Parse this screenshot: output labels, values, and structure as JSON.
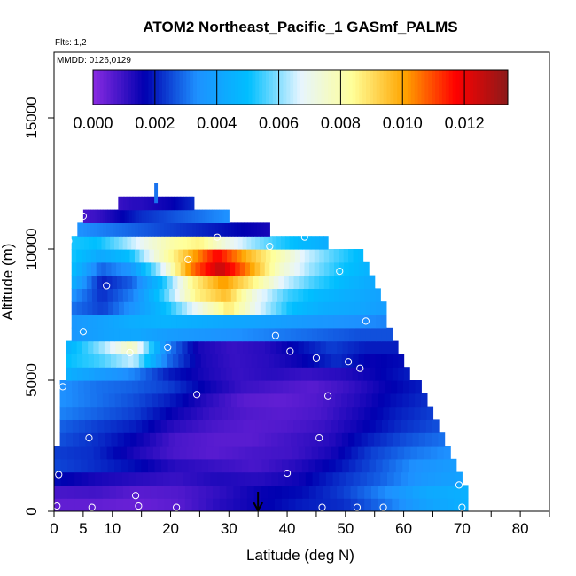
{
  "chart_data": {
    "type": "heatmap",
    "title": "ATOM2 Northeast_Pacific_1 GASmf_PALMS",
    "flights_label": "Flts: 1,2",
    "date_label": "MMDD: 0126,0129",
    "xlabel": "Latitude (deg N)",
    "ylabel": "Altitude (m)",
    "xlim": [
      0,
      85
    ],
    "ylim": [
      0,
      17500
    ],
    "x_ticks": [
      0,
      5,
      10,
      20,
      30,
      40,
      50,
      60,
      70,
      80
    ],
    "y_ticks": [
      0,
      5000,
      10000,
      15000
    ],
    "colorbar": {
      "min": 0.0,
      "max": 0.0134,
      "ticks": [
        "0.000",
        "0.002",
        "0.004",
        "0.006",
        "0.008",
        "0.010",
        "0.012"
      ],
      "tick_values": [
        0.0,
        0.002,
        0.004,
        0.006,
        0.008,
        0.01,
        0.012
      ],
      "colors": [
        "#8a2be2",
        "#0000b0",
        "#1e90ff",
        "#00bfff",
        "#e6f5ff",
        "#ffff99",
        "#ffa500",
        "#ff0000",
        "#8b1a1a"
      ]
    },
    "marker": {
      "latitude": 35,
      "label": "arrow"
    },
    "layers": [
      {
        "alt": 250,
        "lat": [
          0,
          71
        ],
        "values": [
          0.0005,
          0.0005,
          0.0004,
          0.0006,
          0.0012,
          0.0016,
          0.002,
          0.0022,
          0.003,
          0.004,
          0.0045
        ]
      },
      {
        "alt": 750,
        "lat": [
          0,
          71
        ],
        "values": [
          0.0008,
          0.0009,
          0.0006,
          0.0007,
          0.0011,
          0.0016,
          0.0018,
          0.0024,
          0.0033,
          0.0042,
          0.0045
        ]
      },
      {
        "alt": 1250,
        "lat": [
          0,
          70
        ],
        "values": [
          0.0018,
          0.0014,
          0.0012,
          0.001,
          0.0013,
          0.0012,
          0.0015,
          0.0022,
          0.0028,
          0.0036,
          0.004
        ]
      },
      {
        "alt": 1750,
        "lat": [
          0,
          69
        ],
        "values": [
          0.0025,
          0.0022,
          0.0018,
          0.0012,
          0.001,
          0.0008,
          0.0012,
          0.0018,
          0.0026,
          0.0034,
          0.0038
        ]
      },
      {
        "alt": 2250,
        "lat": [
          0,
          68
        ],
        "values": [
          0.0024,
          0.0022,
          0.0014,
          0.0008,
          0.0006,
          0.0008,
          0.0009,
          0.0014,
          0.0024,
          0.003,
          0.0034
        ]
      },
      {
        "alt": 2750,
        "lat": [
          1,
          67
        ],
        "values": [
          0.0026,
          0.0022,
          0.0016,
          0.0008,
          0.0006,
          0.0006,
          0.0009,
          0.0012,
          0.002,
          0.0026,
          0.003
        ]
      },
      {
        "alt": 3250,
        "lat": [
          1,
          66
        ],
        "values": [
          0.0028,
          0.0024,
          0.002,
          0.0012,
          0.0008,
          0.0006,
          0.0007,
          0.001,
          0.0016,
          0.0022,
          0.0026
        ]
      },
      {
        "alt": 3750,
        "lat": [
          1,
          65
        ],
        "values": [
          0.0032,
          0.0028,
          0.0024,
          0.0016,
          0.001,
          0.0007,
          0.0006,
          0.0008,
          0.0014,
          0.002,
          0.0024
        ]
      },
      {
        "alt": 4250,
        "lat": [
          1,
          64
        ],
        "values": [
          0.0034,
          0.003,
          0.0026,
          0.002,
          0.0012,
          0.0006,
          0.0005,
          0.0007,
          0.0012,
          0.0018,
          0.0022
        ]
      },
      {
        "alt": 4750,
        "lat": [
          1,
          63
        ],
        "values": [
          0.0034,
          0.003,
          0.0028,
          0.0024,
          0.0016,
          0.001,
          0.0008,
          0.0006,
          0.001,
          0.0016,
          0.002
        ]
      },
      {
        "alt": 5250,
        "lat": [
          2,
          61
        ],
        "values": [
          0.0045,
          0.0038,
          0.0032,
          0.002,
          0.0014,
          0.001,
          0.0012,
          0.001,
          0.0012,
          0.0016,
          0.002
        ]
      },
      {
        "alt": 5750,
        "lat": [
          2,
          60
        ],
        "values": [
          0.005,
          0.0055,
          0.0065,
          0.003,
          0.0014,
          0.001,
          0.0012,
          0.0016,
          0.0022,
          0.0016,
          0.0018
        ]
      },
      {
        "alt": 6250,
        "lat": [
          2,
          59
        ],
        "values": [
          0.0045,
          0.006,
          0.0078,
          0.0034,
          0.0014,
          0.001,
          0.0012,
          0.0018,
          0.0024,
          0.002,
          0.002
        ]
      },
      {
        "alt": 6750,
        "lat": [
          3,
          58
        ],
        "values": [
          0.0036,
          0.004,
          0.0042,
          0.0038,
          0.0036,
          0.0034,
          0.0032,
          0.003,
          0.0028,
          0.0026,
          0.0026
        ]
      },
      {
        "alt": 7250,
        "lat": [
          3,
          57
        ],
        "values": [
          0.0036,
          0.004,
          0.0044,
          0.0046,
          0.0044,
          0.0042,
          0.004,
          0.0038,
          0.0036,
          0.0034,
          0.0032
        ]
      },
      {
        "alt": 7750,
        "lat": [
          3,
          57
        ],
        "values": [
          0.003,
          0.0024,
          0.0036,
          0.005,
          0.007,
          0.0088,
          0.0066,
          0.005,
          0.0044,
          0.0042,
          0.0038
        ]
      },
      {
        "alt": 8250,
        "lat": [
          3,
          56
        ],
        "values": [
          0.0035,
          0.0022,
          0.0032,
          0.0055,
          0.0085,
          0.0096,
          0.007,
          0.0055,
          0.0048,
          0.0044,
          0.004
        ]
      },
      {
        "alt": 8750,
        "lat": [
          3,
          55
        ],
        "values": [
          0.0045,
          0.002,
          0.0028,
          0.005,
          0.0085,
          0.0102,
          0.0086,
          0.0066,
          0.0055,
          0.0048,
          0.0042
        ]
      },
      {
        "alt": 9250,
        "lat": [
          3,
          54
        ],
        "values": [
          0.005,
          0.0028,
          0.0036,
          0.0064,
          0.0104,
          0.0126,
          0.0102,
          0.0076,
          0.0062,
          0.0052,
          0.0046
        ]
      },
      {
        "alt": 9750,
        "lat": [
          3,
          53
        ],
        "values": [
          0.0052,
          0.0042,
          0.005,
          0.0076,
          0.0096,
          0.0118,
          0.0098,
          0.0082,
          0.0066,
          0.0056,
          0.0048
        ]
      },
      {
        "alt": 10250,
        "lat": [
          3,
          47
        ],
        "values": [
          0.0052,
          0.005,
          0.006,
          0.0072,
          0.0082,
          0.0086,
          0.0072,
          0.0062,
          0.0054,
          0.0048,
          0.0044
        ]
      },
      {
        "alt": 10750,
        "lat": [
          4,
          37
        ],
        "values": [
          0.0034,
          0.0032,
          0.003,
          0.0028,
          0.0026,
          0.0024,
          0.0022,
          0.002,
          0.0018,
          0.0016,
          0.0014
        ]
      },
      {
        "alt": 11250,
        "lat": [
          5,
          30
        ],
        "values": [
          0.0008,
          0.001,
          0.0014,
          0.0018,
          0.0022,
          0.0024,
          0.0026,
          0.0028,
          0.003,
          0.0032,
          0.0034
        ]
      },
      {
        "alt": 11750,
        "lat": [
          11,
          24
        ],
        "values": [
          0.001,
          0.0011,
          0.0012,
          0.0012,
          0.0013,
          0.0014,
          0.0015,
          0.0016,
          0.0018,
          0.002,
          0.0022
        ]
      }
    ],
    "spike": {
      "lat": 17.5,
      "alt_range": [
        11750,
        12500
      ],
      "value": 0.003
    },
    "points": [
      {
        "lat": 0.5,
        "alt": 200
      },
      {
        "lat": 6.5,
        "alt": 150
      },
      {
        "lat": 14.5,
        "alt": 200
      },
      {
        "lat": 21,
        "alt": 150
      },
      {
        "lat": 46,
        "alt": 150
      },
      {
        "lat": 52,
        "alt": 150
      },
      {
        "lat": 56.5,
        "alt": 150
      },
      {
        "lat": 70,
        "alt": 150
      },
      {
        "lat": 14,
        "alt": 600
      },
      {
        "lat": 69.5,
        "alt": 1000
      },
      {
        "lat": 0.8,
        "alt": 1400
      },
      {
        "lat": 40,
        "alt": 1450
      },
      {
        "lat": 6,
        "alt": 2800
      },
      {
        "lat": 45.5,
        "alt": 2800
      },
      {
        "lat": 24.5,
        "alt": 4450
      },
      {
        "lat": 47,
        "alt": 4400
      },
      {
        "lat": 1.5,
        "alt": 4750
      },
      {
        "lat": 52.5,
        "alt": 5450
      },
      {
        "lat": 50.5,
        "alt": 5700
      },
      {
        "lat": 45,
        "alt": 5850
      },
      {
        "lat": 13,
        "alt": 6050
      },
      {
        "lat": 19.5,
        "alt": 6250
      },
      {
        "lat": 40.5,
        "alt": 6100
      },
      {
        "lat": 38,
        "alt": 6700
      },
      {
        "lat": 5,
        "alt": 6850
      },
      {
        "lat": 53.5,
        "alt": 7250
      },
      {
        "lat": 9,
        "alt": 8600
      },
      {
        "lat": 49,
        "alt": 9150
      },
      {
        "lat": 23,
        "alt": 9600
      },
      {
        "lat": 2.5,
        "alt": 10300
      },
      {
        "lat": 37,
        "alt": 10100
      },
      {
        "lat": 28,
        "alt": 10450
      },
      {
        "lat": 43,
        "alt": 10450
      },
      {
        "lat": 5,
        "alt": 11250
      }
    ]
  }
}
